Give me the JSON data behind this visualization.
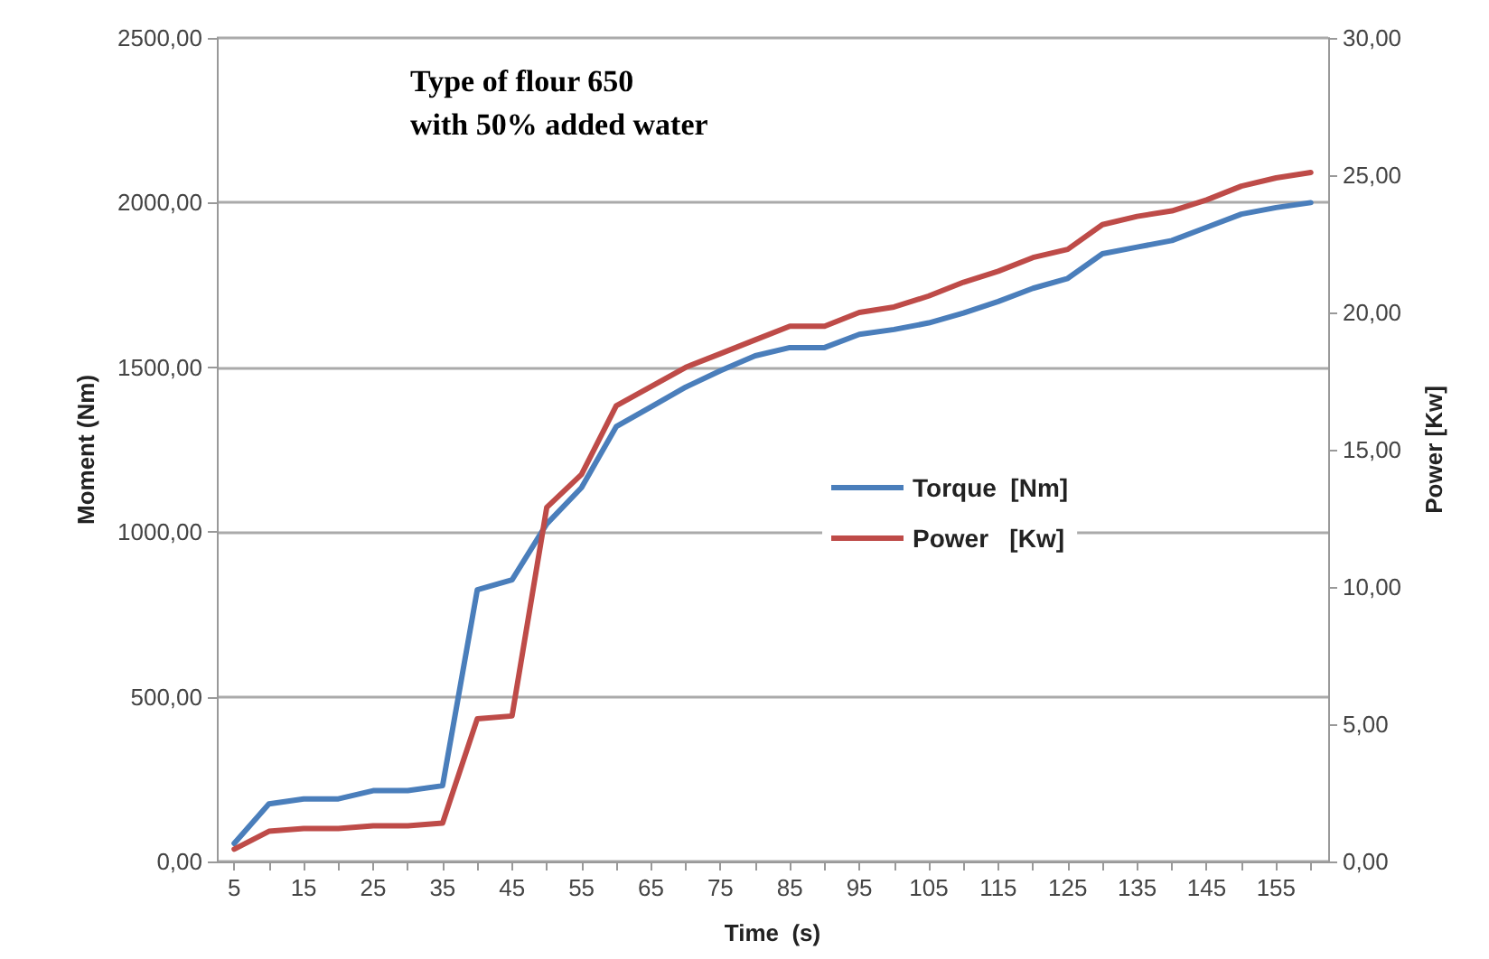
{
  "chart_data": {
    "type": "line",
    "title": "Type of flour 650\nwith 50% added water",
    "xlabel": "Time  (s)",
    "ylabel": "Moment (Nm)",
    "y2label": "Power [Kw]",
    "categories": [
      "5",
      null,
      "15",
      null,
      "25",
      null,
      "35",
      null,
      "45",
      null,
      "55",
      null,
      "65",
      null,
      "75",
      null,
      "85",
      null,
      "95",
      null,
      "105",
      null,
      "115",
      null,
      "125",
      null,
      "135",
      null,
      "145",
      null,
      "155",
      null
    ],
    "series": [
      {
        "name": "Torque  [Nm]",
        "color": "#4a7ebb",
        "values": [
          55,
          175,
          190,
          190,
          215,
          215,
          230,
          825,
          855,
          1025,
          1135,
          1320,
          1380,
          1440,
          1490,
          1535,
          1560,
          1560,
          1600,
          1615,
          1635,
          1665,
          1700,
          1740,
          1770,
          1845,
          1865,
          1885,
          1925,
          1965,
          1985,
          2000
        ]
      },
      {
        "name": "Power   [Kw]",
        "color": "#be4b48",
        "axis": "y2",
        "values": [
          0.45,
          1.1,
          1.2,
          1.2,
          1.3,
          1.3,
          1.4,
          5.2,
          5.3,
          12.9,
          14.1,
          16.6,
          17.3,
          18.0,
          18.5,
          19.0,
          19.5,
          19.5,
          20.0,
          20.2,
          20.6,
          21.1,
          21.5,
          22.0,
          22.3,
          23.2,
          23.5,
          23.7,
          24.1,
          24.6,
          24.9,
          25.1
        ]
      }
    ],
    "ylim": [
      0,
      2500
    ],
    "yticks": [
      {
        "value": 0,
        "label": "0,00"
      },
      {
        "value": 500,
        "label": "500,00"
      },
      {
        "value": 1000,
        "label": "1000,00"
      },
      {
        "value": 1500,
        "label": "1500,00"
      },
      {
        "value": 2000,
        "label": "2000,00"
      },
      {
        "value": 2500,
        "label": "2500,00"
      }
    ],
    "y2lim": [
      0,
      30
    ],
    "y2ticks": [
      {
        "value": 0,
        "label": "0,00"
      },
      {
        "value": 5,
        "label": "5,00"
      },
      {
        "value": 10,
        "label": "10,00"
      },
      {
        "value": 15,
        "label": "15,00"
      },
      {
        "value": 20,
        "label": "20,00"
      },
      {
        "value": 25,
        "label": "25,00"
      },
      {
        "value": 30,
        "label": "30,00"
      }
    ],
    "grid": "y",
    "legend": "right",
    "marker": "none",
    "line_style": "solid"
  }
}
